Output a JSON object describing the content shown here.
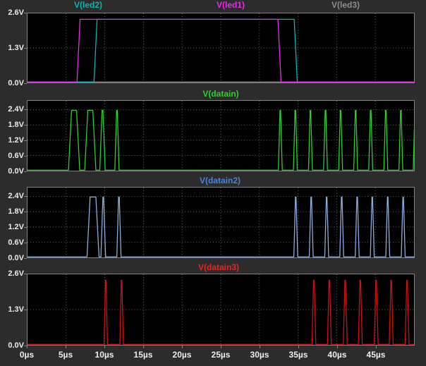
{
  "window": {
    "bg_color": "#2c2c2c",
    "plot_bg_color": "#000000",
    "border_color": "#828282",
    "grid_color": "#6a6a6a",
    "axis_text_color": "#ececec"
  },
  "chart_data": {
    "type": "line",
    "subtype": "digital-waveforms-ltspice",
    "x_unit": "µs",
    "x_range": [
      0,
      50
    ],
    "x_tick_step": 5,
    "x_tick_labels": [
      "0µs",
      "5µs",
      "10µs",
      "15µs",
      "20µs",
      "25µs",
      "30µs",
      "35µs",
      "40µs",
      "45µs"
    ],
    "grid": true,
    "panes": [
      {
        "title_labels": [
          {
            "text": "V(led2)",
            "color": "#10b2b2"
          },
          {
            "text": "V(led1)",
            "color": "#e62ee6"
          },
          {
            "text": "V(led3)",
            "color": "#8c8c8c"
          }
        ],
        "y_ticks": [
          {
            "label": "2.6V",
            "v": 2.6
          },
          {
            "label": "1.3V",
            "v": 1.3
          },
          {
            "label": "0.0V",
            "v": 0.0
          }
        ],
        "ylim": [
          0,
          2.6
        ],
        "high_level_v": 2.38,
        "series": [
          {
            "name": "V(led3)",
            "color": "#8c8c8c",
            "high_intervals_us": []
          },
          {
            "name": "V(led2)",
            "color": "#10b2b2",
            "high_intervals_us": [
              [
                8.6,
                34.9
              ]
            ]
          },
          {
            "name": "V(led1)",
            "color": "#e62ee6",
            "high_intervals_us": [
              [
                6.4,
                32.8
              ]
            ]
          }
        ]
      },
      {
        "title_labels": [
          {
            "text": "V(datain)",
            "color": "#31cd31"
          }
        ],
        "y_ticks": [
          {
            "label": "2.4V",
            "v": 2.4
          },
          {
            "label": "1.8V",
            "v": 1.8
          },
          {
            "label": "1.2V",
            "v": 1.2
          },
          {
            "label": "0.6V",
            "v": 0.6
          },
          {
            "label": "0.0V",
            "v": 0.0
          }
        ],
        "ylim": [
          0,
          2.75
        ],
        "high_level_v": 2.38,
        "series": [
          {
            "name": "V(datain)",
            "color": "#31cd31",
            "high_intervals_us": [
              [
                5.3,
                6.75
              ],
              [
                7.4,
                8.85
              ],
              [
                9.35,
                10.05
              ],
              [
                11.3,
                11.85
              ],
              [
                32.45,
                32.95
              ],
              [
                34.4,
                34.9
              ],
              [
                36.35,
                36.85
              ],
              [
                38.3,
                38.8
              ],
              [
                40.25,
                40.75
              ],
              [
                42.2,
                42.7
              ],
              [
                44.15,
                44.65
              ],
              [
                46.1,
                46.6
              ],
              [
                48.05,
                48.55
              ],
              [
                49.9,
                50.4
              ]
            ]
          }
        ]
      },
      {
        "title_labels": [
          {
            "text": "V(datain2)",
            "color": "#4d82d9"
          }
        ],
        "y_ticks": [
          {
            "label": "2.4V",
            "v": 2.4
          },
          {
            "label": "1.8V",
            "v": 1.8
          },
          {
            "label": "1.2V",
            "v": 1.2
          },
          {
            "label": "0.6V",
            "v": 0.6
          },
          {
            "label": "0.0V",
            "v": 0.0
          }
        ],
        "ylim": [
          0,
          2.75
        ],
        "high_level_v": 2.38,
        "series": [
          {
            "name": "V(datain2)",
            "color": "#8fadde",
            "high_intervals_us": [
              [
                7.7,
                9.25
              ],
              [
                9.5,
                10.1
              ],
              [
                11.55,
                12.1
              ],
              [
                34.45,
                34.95
              ],
              [
                36.45,
                36.95
              ],
              [
                38.45,
                38.95
              ],
              [
                40.4,
                40.9
              ],
              [
                42.4,
                42.9
              ],
              [
                44.35,
                44.85
              ],
              [
                46.35,
                46.85
              ],
              [
                48.35,
                48.85
              ]
            ]
          }
        ]
      },
      {
        "title_labels": [
          {
            "text": "V(datain3)",
            "color": "#ee2222"
          }
        ],
        "y_ticks": [
          {
            "label": "2.6V",
            "v": 2.6
          },
          {
            "label": "1.3V",
            "v": 1.3
          },
          {
            "label": "0.0V",
            "v": 0.0
          }
        ],
        "ylim": [
          0,
          2.6
        ],
        "high_level_v": 2.38,
        "series": [
          {
            "name": "V(datain3)",
            "color": "#cf1111",
            "high_intervals_us": [
              [
                9.9,
                10.35
              ],
              [
                11.95,
                12.4
              ],
              [
                36.8,
                37.3
              ],
              [
                38.8,
                39.3
              ],
              [
                40.85,
                41.35
              ],
              [
                42.8,
                43.3
              ],
              [
                44.85,
                45.35
              ],
              [
                46.8,
                47.3
              ],
              [
                48.85,
                49.35
              ]
            ]
          }
        ]
      }
    ]
  }
}
